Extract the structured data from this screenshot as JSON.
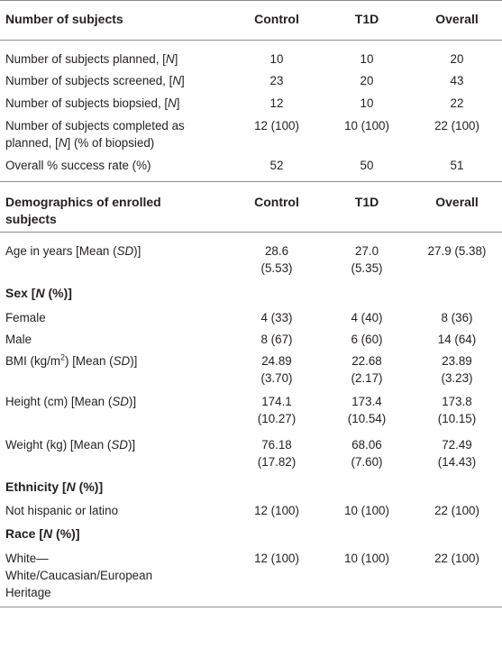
{
  "section1": {
    "header": [
      "Number of subjects",
      "Control",
      "T1D",
      "Overall"
    ],
    "rows": [
      {
        "label": "Number of subjects planned, [",
        "label_it": "N",
        "label_end": "]",
        "values": [
          "10",
          "10",
          "20"
        ]
      },
      {
        "label": "Number of subjects screened, [",
        "label_it": "N",
        "label_end": "]",
        "values": [
          "23",
          "20",
          "43"
        ]
      },
      {
        "label": "Number of subjects biopsied, [",
        "label_it": "N",
        "label_end": "]",
        "values": [
          "12",
          "10",
          "22"
        ]
      },
      {
        "label": "Number of subjects completed as planned, [",
        "label_it": "N",
        "label_end": "] (% of biopsied)",
        "values": [
          "12 (100)",
          "10 (100)",
          "22 (100)"
        ]
      },
      {
        "label": "Overall % success rate (%)",
        "values": [
          "52",
          "50",
          "51"
        ]
      }
    ]
  },
  "section2": {
    "header": [
      "Demographics of enrolled subjects",
      "Control",
      "T1D",
      "Overall"
    ],
    "age": {
      "label": "Age in years [Mean (",
      "label_it": "SD",
      "label_end": ")]",
      "values": [
        "28.6 (5.53)",
        "27.0 (5.35)",
        "27.9 (5.38)"
      ]
    },
    "sex_heading": {
      "pre": "Sex [",
      "it": "N",
      "post": " (%)]"
    },
    "female": {
      "label": "Female",
      "values": [
        "4 (33)",
        "4 (40)",
        "8 (36)"
      ]
    },
    "male": {
      "label": "Male",
      "values": [
        "8 (67)",
        "6 (60)",
        "14 (64)"
      ]
    },
    "bmi": {
      "label_pre": "BMI (kg/m",
      "label_sup": "2",
      "label_mid": ") [Mean (",
      "label_it": "SD",
      "label_end": ")]",
      "values": [
        "24.89 (3.70)",
        "22.68 (2.17)",
        "23.89 (3.23)"
      ]
    },
    "height": {
      "label": "Height (cm) [Mean (",
      "label_it": "SD",
      "label_end": ")]",
      "values": [
        "174.1 (10.27)",
        "173.4 (10.54)",
        "173.8 (10.15)"
      ]
    },
    "weight": {
      "label": "Weight (kg) [Mean (",
      "label_it": "SD",
      "label_end": ")]",
      "values": [
        "76.18 (17.82)",
        "68.06 (7.60)",
        "72.49 (14.43)"
      ]
    },
    "ethnicity_heading": {
      "pre": "Ethnicity [",
      "it": "N",
      "post": " (%)]"
    },
    "ethnicity": {
      "label": "Not hispanic or latino",
      "values": [
        "12 (100)",
        "10 (100)",
        "22 (100)"
      ]
    },
    "race_heading": {
      "pre": "Race [",
      "it": "N",
      "post": " (%)]"
    },
    "race": {
      "label": "White—White/Caucasian/European Heritage",
      "values": [
        "12 (100)",
        "10 (100)",
        "22 (100)"
      ]
    }
  }
}
